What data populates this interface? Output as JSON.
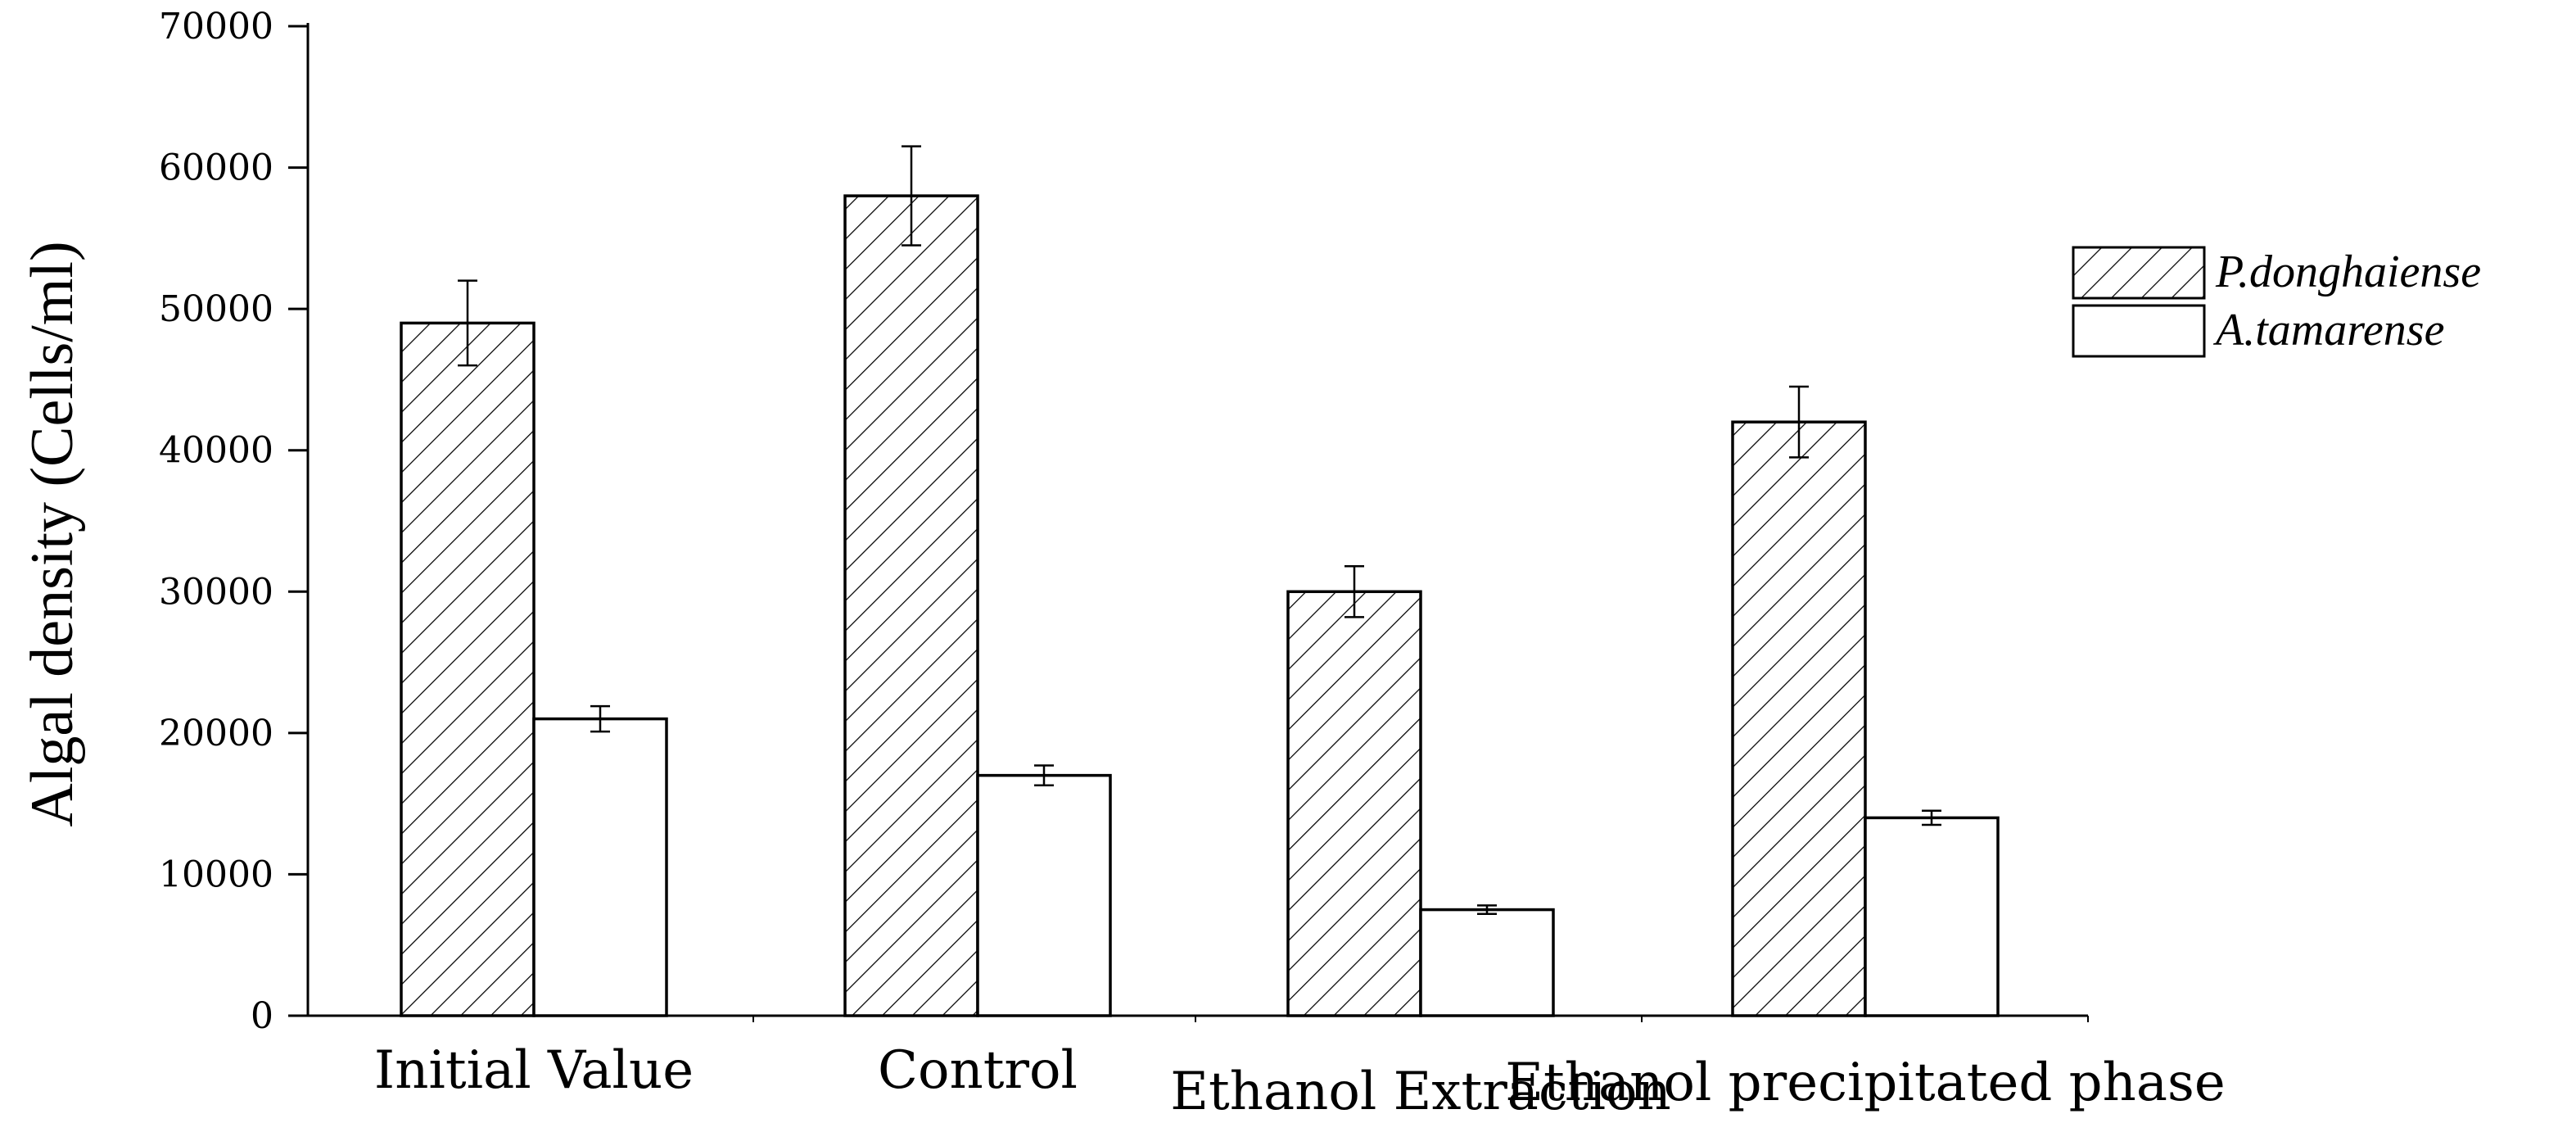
{
  "chart_data": {
    "type": "bar",
    "title": "",
    "xlabel": "",
    "ylabel": "Algal density (Cells/ml)",
    "ylim": [
      0,
      70000
    ],
    "yticks": [
      "0",
      "10000",
      "20000",
      "30000",
      "40000",
      "50000",
      "60000",
      "70000"
    ],
    "categories": [
      "Initial Value",
      "Control",
      "Ethanol Extraction",
      "Ethanol precipitated phase"
    ],
    "series": [
      {
        "name": "P.donghaiense",
        "pattern": "hatched",
        "values": [
          49000,
          58000,
          30000,
          42000
        ],
        "errors": [
          3000,
          3500,
          1800,
          2500
        ]
      },
      {
        "name": "A.tamarense",
        "pattern": "open",
        "values": [
          21000,
          17000,
          7500,
          14000
        ],
        "errors": [
          900,
          700,
          300,
          500
        ]
      }
    ],
    "legend_position": "top-right",
    "grid": false
  }
}
